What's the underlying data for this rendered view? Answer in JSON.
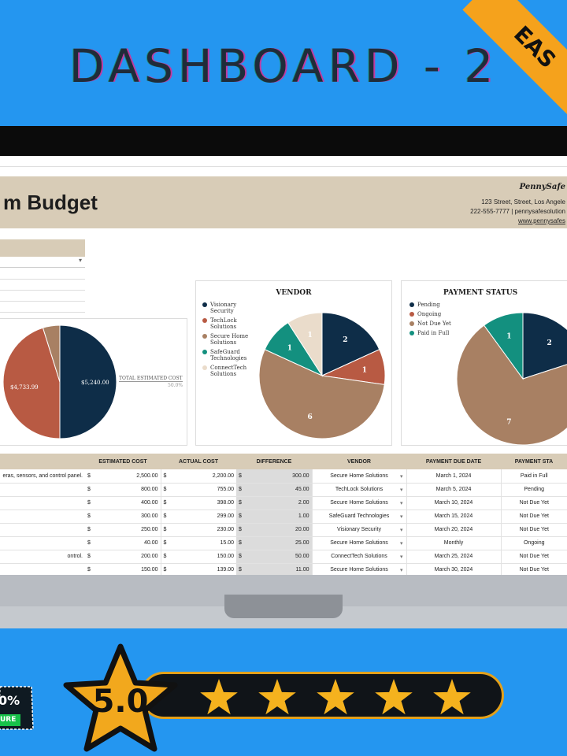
{
  "header": {
    "title": "DASHBOARD - 2",
    "ribbon": "EAS"
  },
  "sheet": {
    "title": "m Budget",
    "brand": "PennySafe",
    "address": "123 Street, Street, Los Angele",
    "contact": "222-555-7777  |  pennysafesolution",
    "website": "www.pennysafes"
  },
  "cost_card": {
    "label_left": "$4,733.99",
    "label_right": "$5,240.00",
    "legend_label": "TOTAL ESTIMATED COST",
    "legend_pct": "50.0%"
  },
  "vendor_card": {
    "title": "VENDOR",
    "legend": [
      "Visionary Security",
      "TechLock Solutions",
      "Secure Home Solutions",
      "SafeGuard Technologies",
      "ConnectTech Solutions"
    ]
  },
  "payment_card": {
    "title": "PAYMENT STATUS",
    "legend": [
      "Pending",
      "Ongoing",
      "Not Due Yet",
      "Paid in Full"
    ]
  },
  "chart_data": [
    {
      "type": "pie",
      "title": "",
      "slices": [
        {
          "label": "$5,240.00",
          "value": 5240.0,
          "color": "#0e2d48"
        },
        {
          "label": "$4,733.99",
          "value": 4733.99,
          "color": "#b85a43"
        },
        {
          "label": "",
          "value": 506.01,
          "color": "#a88063"
        }
      ]
    },
    {
      "type": "pie",
      "title": "VENDOR",
      "slices": [
        {
          "label": "Visionary Security",
          "value": 2,
          "color": "#0e2d48"
        },
        {
          "label": "TechLock Solutions",
          "value": 1,
          "color": "#b85a43"
        },
        {
          "label": "Secure Home Solutions",
          "value": 6,
          "color": "#a88063"
        },
        {
          "label": "SafeGuard Technologies",
          "value": 1,
          "color": "#13907f"
        },
        {
          "label": "ConnectTech Solutions",
          "value": 1,
          "color": "#eadccb"
        }
      ]
    },
    {
      "type": "pie",
      "title": "PAYMENT STATUS",
      "slices": [
        {
          "label": "Pending",
          "value": 2,
          "color": "#0e2d48"
        },
        {
          "label": "Not Due Yet",
          "value": 7,
          "color": "#a88063"
        },
        {
          "label": "Paid in Full",
          "value": 1,
          "color": "#13907f"
        }
      ]
    }
  ],
  "table": {
    "headers": [
      "",
      "ESTIMATED COST",
      "ACTUAL COST",
      "DIFFERENCE",
      "VENDOR",
      "PAYMENT DUE DATE",
      "PAYMENT STA"
    ],
    "rows": [
      {
        "desc": "eras, sensors, and control panel.",
        "est": "2,500.00",
        "act": "2,200.00",
        "diff": "300.00",
        "vendor": "Secure Home Solutions",
        "due": "March 1, 2024",
        "status": "Paid in Full"
      },
      {
        "desc": "",
        "est": "800.00",
        "act": "755.00",
        "diff": "45.00",
        "vendor": "TechLock Solutions",
        "due": "March 5, 2024",
        "status": "Pending"
      },
      {
        "desc": "",
        "est": "400.00",
        "act": "398.00",
        "diff": "2.00",
        "vendor": "Secure Home Solutions",
        "due": "March 10, 2024",
        "status": "Not Due Yet"
      },
      {
        "desc": "",
        "est": "300.00",
        "act": "299.00",
        "diff": "1.00",
        "vendor": "SafeGuard Technologies",
        "due": "March 15, 2024",
        "status": "Not Due Yet"
      },
      {
        "desc": "",
        "est": "250.00",
        "act": "230.00",
        "diff": "20.00",
        "vendor": "Visionary Security",
        "due": "March 20, 2024",
        "status": "Not Due Yet"
      },
      {
        "desc": "",
        "est": "40.00",
        "act": "15.00",
        "diff": "25.00",
        "vendor": "Secure Home Solutions",
        "due": "Monthly",
        "status": "Ongoing"
      },
      {
        "desc": "ontrol.",
        "est": "200.00",
        "act": "150.00",
        "diff": "50.00",
        "vendor": "ConnectTech Solutions",
        "due": "March 25, 2024",
        "status": "Not Due Yet"
      },
      {
        "desc": "",
        "est": "150.00",
        "act": "139.00",
        "diff": "11.00",
        "vendor": "Secure Home Solutions",
        "due": "March 30, 2024",
        "status": "Not Due Yet"
      }
    ],
    "currency": "$"
  },
  "rating": {
    "score": "5.0",
    "stars": 5,
    "badge_pct": "0%",
    "badge_word": "URE"
  }
}
